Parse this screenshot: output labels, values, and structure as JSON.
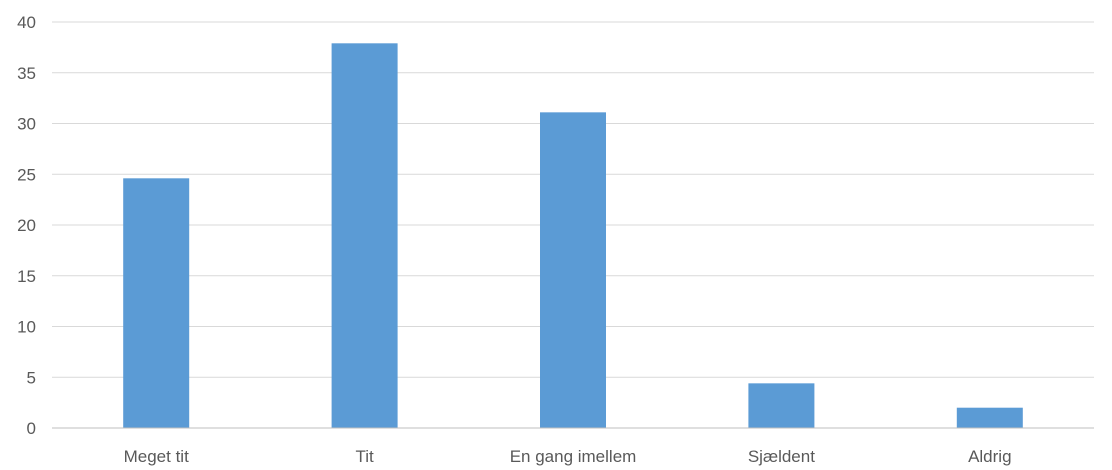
{
  "chart_data": {
    "type": "bar",
    "categories": [
      "Meget tit",
      "Tit",
      "En gang imellem",
      "Sjældent",
      "Aldrig"
    ],
    "values": [
      24.6,
      37.9,
      31.1,
      4.4,
      2.0
    ],
    "title": "",
    "xlabel": "",
    "ylabel": "",
    "ylim": [
      0,
      40
    ],
    "yticks": [
      0,
      5,
      10,
      15,
      20,
      25,
      30,
      35,
      40
    ],
    "grid": true,
    "legend": "none",
    "colors": {
      "bar": "#5B9BD5",
      "gridline": "#D9D9D9",
      "axis": "#BFBFBF",
      "text": "#595959"
    }
  }
}
